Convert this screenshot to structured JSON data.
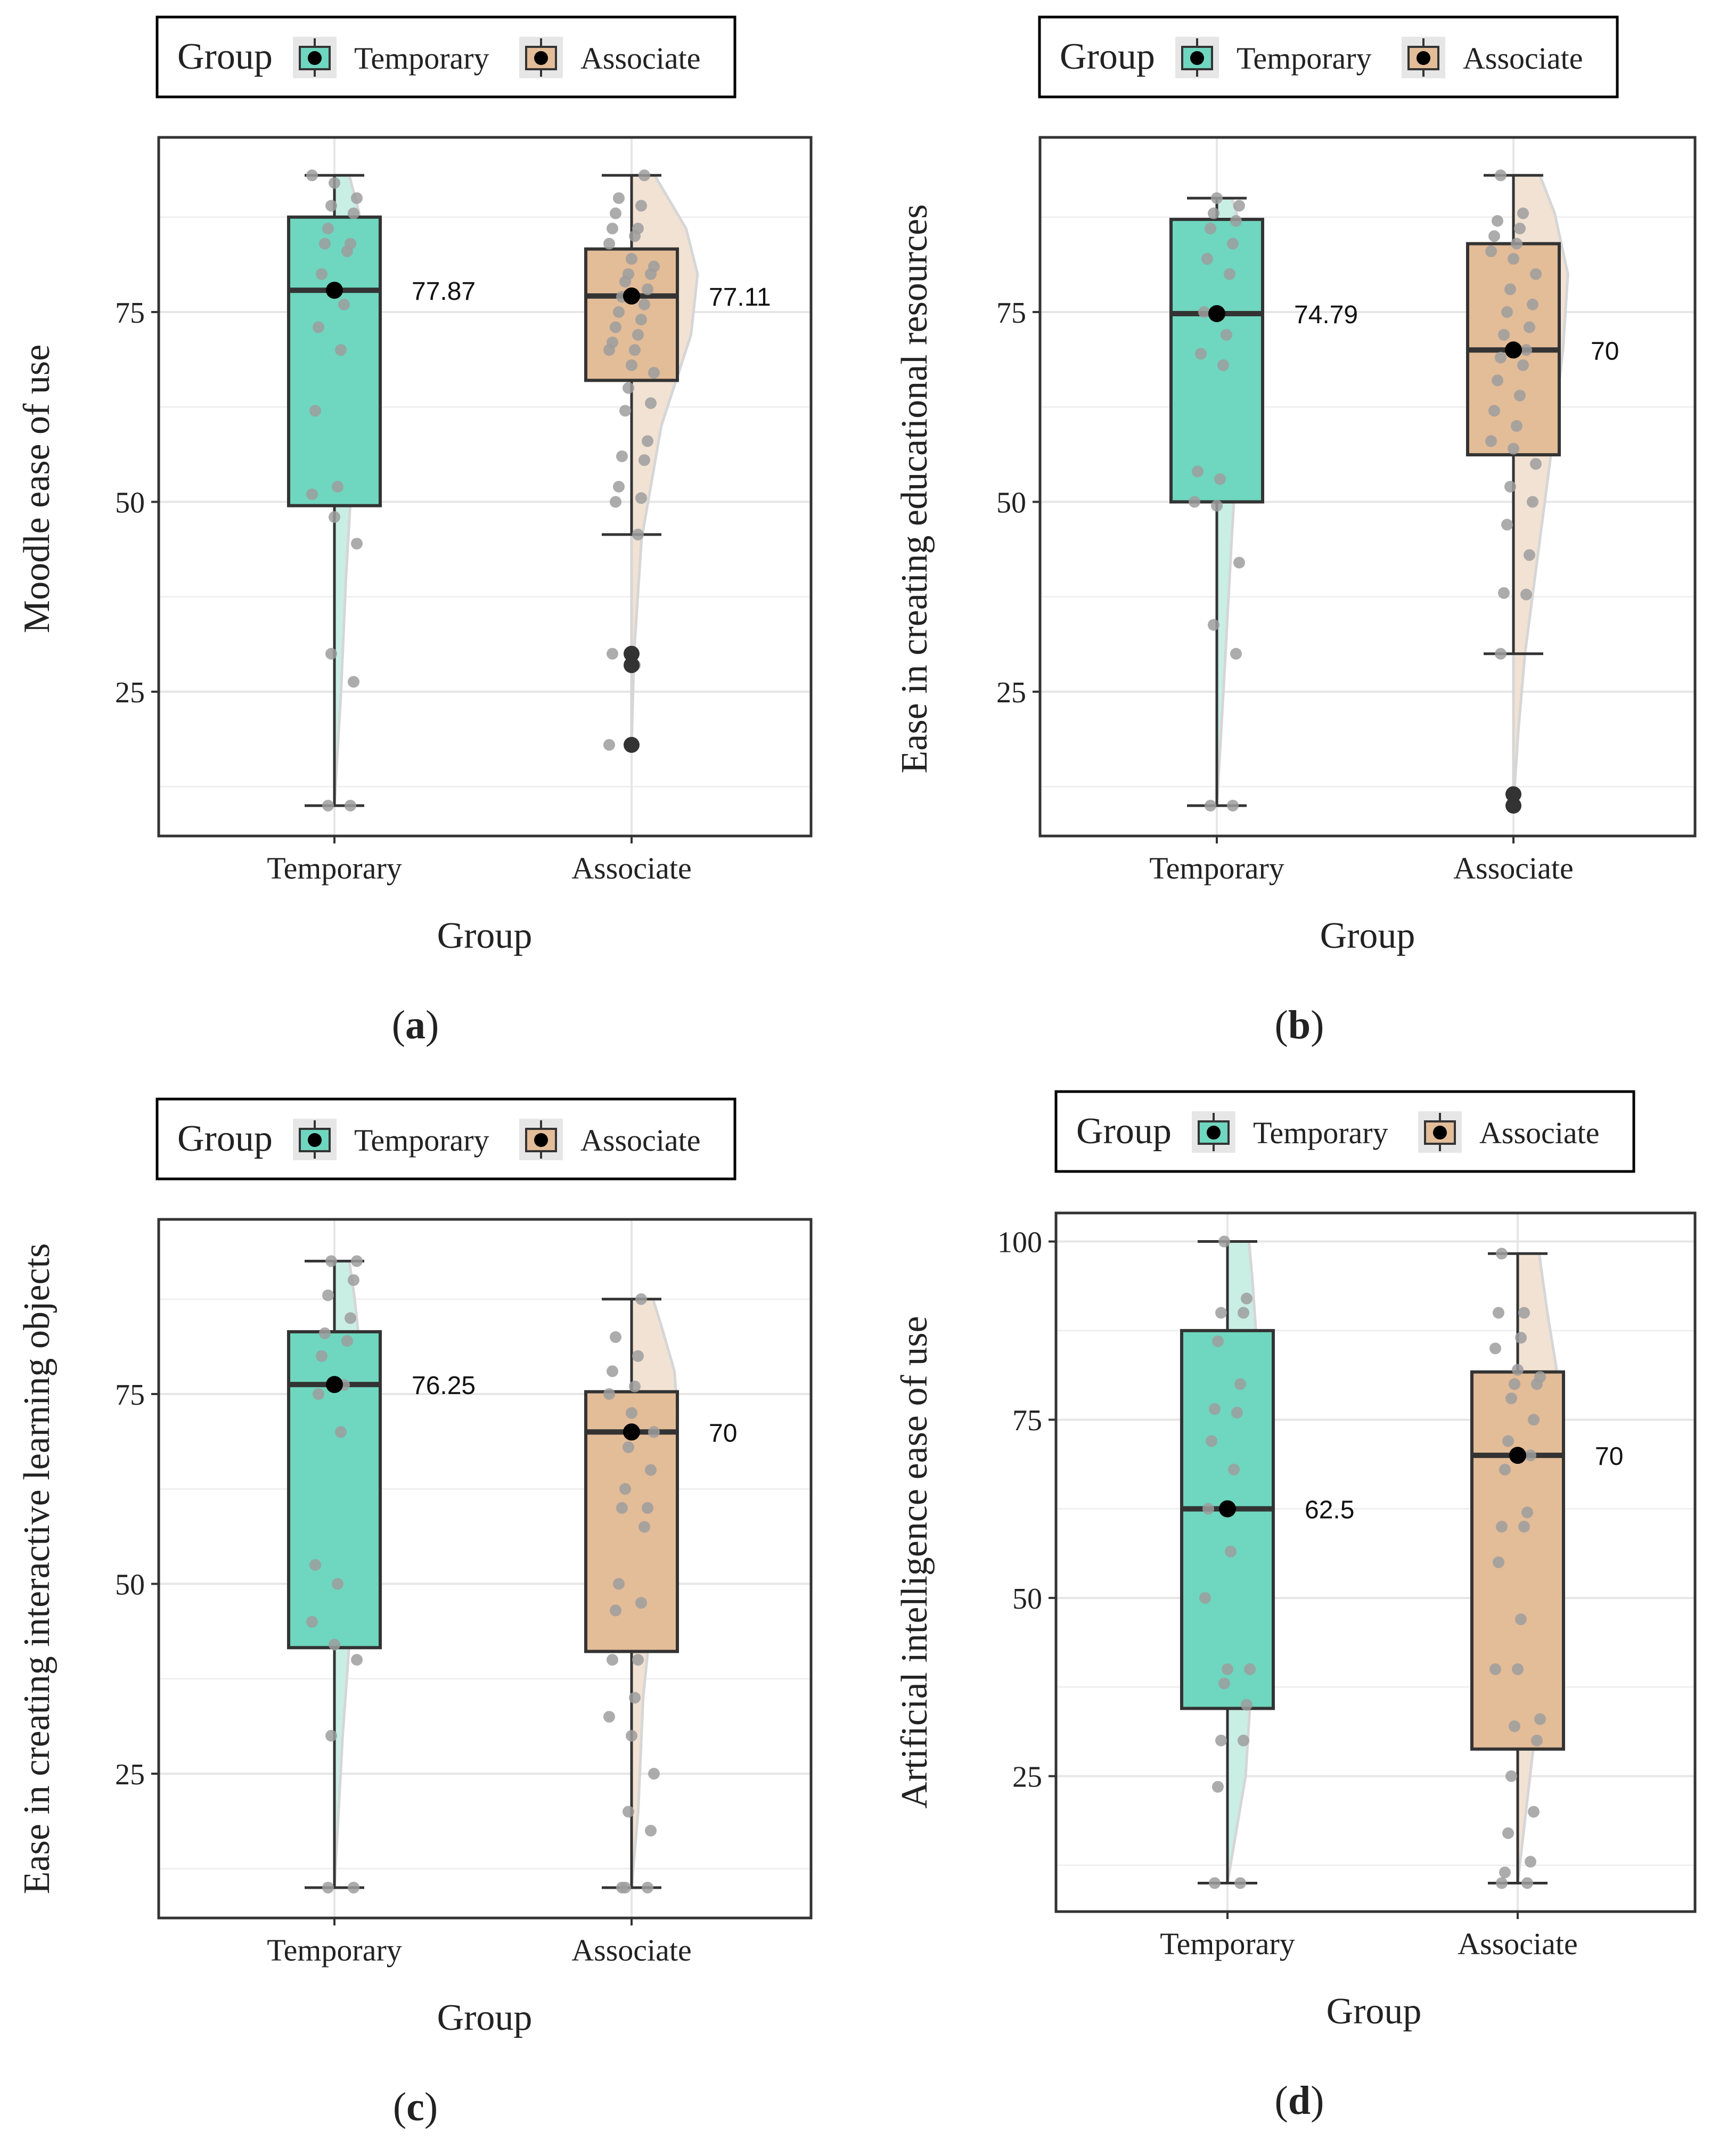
{
  "colors": {
    "temporary_fill": "#6fd6bf",
    "temporary_half": "#c9eee4",
    "associate_fill": "#e3bc98",
    "associate_half": "#f1e2d3",
    "jitter_point": "#9e9e9e",
    "outlier_point": "#333333",
    "median_point": "#000000",
    "box_stroke": "#333333",
    "grid": "#e6e6e6"
  },
  "chart_data": [
    {
      "type": "box",
      "panel_label": "a",
      "legend": {
        "title": "Group",
        "entries": [
          "Temporary",
          "Associate"
        ]
      },
      "xlabel": "Group",
      "ylabel": "Moodle ease of use",
      "categories": [
        "Temporary",
        "Associate"
      ],
      "yticks": [
        "25",
        "50",
        "75"
      ],
      "ylim": [
        6,
        98
      ],
      "series": [
        {
          "group": "Temporary",
          "q1": 49.5,
          "median": 77.87,
          "q3": 87.5,
          "whisker_low": 10,
          "whisker_high": 93,
          "label": "77.87",
          "points": [
            93,
            92,
            90,
            89,
            88,
            86,
            84,
            84,
            83,
            80,
            76,
            73,
            70,
            62,
            52,
            51,
            48,
            44.5,
            30,
            26.3,
            10,
            10
          ],
          "outliers": [],
          "density": [
            [
              10,
              0.0
            ],
            [
              25,
              0.08
            ],
            [
              40,
              0.14
            ],
            [
              55,
              0.22
            ],
            [
              70,
              0.3
            ],
            [
              80,
              0.34
            ],
            [
              88,
              0.3
            ],
            [
              93,
              0.18
            ]
          ]
        },
        {
          "group": "Associate",
          "q1": 66,
          "median": 77.11,
          "q3": 83.3,
          "whisker_low": 45.7,
          "whisker_high": 93,
          "label": "77.11",
          "points": [
            93,
            90,
            89,
            88,
            86,
            86,
            85,
            84,
            82,
            81,
            80,
            80,
            79,
            78,
            77,
            76,
            75,
            74,
            73,
            72,
            71,
            70,
            70,
            68,
            67,
            65,
            63,
            62,
            58,
            56,
            55.5,
            52,
            50.5,
            50,
            45.7,
            30,
            28.5,
            18,
            18
          ],
          "outliers": [
            30,
            28.5,
            18
          ],
          "density": [
            [
              18,
              0.0
            ],
            [
              30,
              0.03
            ],
            [
              45,
              0.12
            ],
            [
              60,
              0.36
            ],
            [
              72,
              0.72
            ],
            [
              80,
              0.8
            ],
            [
              86,
              0.66
            ],
            [
              93,
              0.28
            ]
          ]
        }
      ]
    },
    {
      "type": "box",
      "panel_label": "b",
      "legend": {
        "title": "Group",
        "entries": [
          "Temporary",
          "Associate"
        ]
      },
      "xlabel": "Group",
      "ylabel": "Ease in creating educational resources",
      "categories": [
        "Temporary",
        "Associate"
      ],
      "yticks": [
        "25",
        "50",
        "75"
      ],
      "ylim": [
        6,
        98
      ],
      "series": [
        {
          "group": "Temporary",
          "q1": 50,
          "median": 74.79,
          "q3": 87.2,
          "whisker_low": 10,
          "whisker_high": 90,
          "label": "74.79",
          "points": [
            90,
            89,
            88,
            87,
            86,
            84,
            82,
            80,
            75,
            72,
            69.5,
            68,
            54,
            53,
            50,
            49.5,
            42,
            33.8,
            30,
            10,
            10
          ],
          "outliers": [],
          "density": [
            [
              10,
              0.0
            ],
            [
              25,
              0.08
            ],
            [
              45,
              0.18
            ],
            [
              60,
              0.26
            ],
            [
              72,
              0.32
            ],
            [
              82,
              0.34
            ],
            [
              88,
              0.24
            ],
            [
              90,
              0.18
            ]
          ]
        },
        {
          "group": "Associate",
          "q1": 56.2,
          "median": 70,
          "q3": 84,
          "whisker_low": 30,
          "whisker_high": 93,
          "label": "70",
          "points": [
            93,
            88,
            87,
            86,
            85,
            84,
            83,
            82,
            80,
            78,
            76,
            75,
            73,
            72,
            70,
            69,
            68,
            66,
            64,
            62,
            60,
            58,
            57,
            55,
            52,
            50,
            47,
            43,
            38,
            37.8,
            30
          ],
          "outliers": [
            11.5,
            10
          ],
          "density": [
            [
              10,
              0.0
            ],
            [
              20,
              0.06
            ],
            [
              30,
              0.14
            ],
            [
              40,
              0.26
            ],
            [
              55,
              0.44
            ],
            [
              70,
              0.6
            ],
            [
              80,
              0.66
            ],
            [
              88,
              0.5
            ],
            [
              93,
              0.32
            ]
          ]
        }
      ]
    },
    {
      "type": "box",
      "panel_label": "c",
      "legend": {
        "title": "Group",
        "entries": [
          "Temporary",
          "Associate"
        ]
      },
      "xlabel": "Group",
      "ylabel": "Ease in creating interactive learning objects",
      "categories": [
        "Temporary",
        "Associate"
      ],
      "yticks": [
        "25",
        "50",
        "75"
      ],
      "ylim": [
        6,
        98
      ],
      "series": [
        {
          "group": "Temporary",
          "q1": 41.6,
          "median": 76.25,
          "q3": 83.2,
          "whisker_low": 10,
          "whisker_high": 92.5,
          "label": "76.25",
          "points": [
            92.5,
            92.5,
            90,
            88,
            85,
            83,
            82,
            80,
            76.2,
            75,
            70,
            52.5,
            50,
            45,
            42,
            40,
            30,
            10,
            10
          ],
          "outliers": [],
          "density": [
            [
              10,
              0.0
            ],
            [
              30,
              0.1
            ],
            [
              45,
              0.2
            ],
            [
              60,
              0.26
            ],
            [
              72,
              0.3
            ],
            [
              82,
              0.3
            ],
            [
              88,
              0.24
            ],
            [
              92.5,
              0.18
            ]
          ]
        },
        {
          "group": "Associate",
          "q1": 41.1,
          "median": 70,
          "q3": 75.3,
          "whisker_low": 10,
          "whisker_high": 87.5,
          "label": "70",
          "points": [
            87.5,
            82.5,
            80,
            78,
            76,
            75,
            72.5,
            70,
            68,
            65,
            62.5,
            60,
            60,
            57.5,
            50,
            47.5,
            46.5,
            40,
            40,
            35,
            32.5,
            30,
            25,
            20,
            17.5,
            10,
            10,
            10
          ],
          "outliers": [],
          "density": [
            [
              10,
              0.0
            ],
            [
              20,
              0.08
            ],
            [
              35,
              0.14
            ],
            [
              50,
              0.28
            ],
            [
              62,
              0.44
            ],
            [
              72,
              0.56
            ],
            [
              78,
              0.52
            ],
            [
              84,
              0.36
            ],
            [
              87.5,
              0.26
            ]
          ]
        }
      ]
    },
    {
      "type": "box",
      "panel_label": "d",
      "legend": {
        "title": "Group",
        "entries": [
          "Temporary",
          "Associate"
        ]
      },
      "xlabel": "Group",
      "ylabel": "Artificial intelligence ease of use",
      "categories": [
        "Temporary",
        "Associate"
      ],
      "yticks": [
        "25",
        "50",
        "75",
        "100"
      ],
      "ylim": [
        6,
        104
      ],
      "series": [
        {
          "group": "Temporary",
          "q1": 34.5,
          "median": 62.5,
          "q3": 87.5,
          "whisker_low": 10,
          "whisker_high": 100,
          "label": "62.5",
          "points": [
            100,
            92,
            90,
            90,
            86,
            80,
            76.5,
            76,
            72,
            68,
            62.5,
            56.5,
            50,
            40,
            40,
            38,
            35,
            30,
            30,
            23.5,
            10,
            10
          ],
          "outliers": [],
          "density": [
            [
              10,
              0.0
            ],
            [
              25,
              0.22
            ],
            [
              40,
              0.3
            ],
            [
              55,
              0.34
            ],
            [
              70,
              0.34
            ],
            [
              85,
              0.36
            ],
            [
              95,
              0.3
            ],
            [
              100,
              0.26
            ]
          ]
        },
        {
          "group": "Associate",
          "q1": 28.8,
          "median": 70,
          "q3": 81.7,
          "whisker_low": 10,
          "whisker_high": 98.3,
          "label": "70",
          "points": [
            98.3,
            90,
            90,
            86.5,
            85,
            82,
            81,
            80,
            80,
            78,
            75,
            72,
            70,
            68,
            62,
            60,
            60,
            55,
            47,
            40,
            40,
            33,
            32,
            30,
            25,
            20,
            17,
            13,
            11.5,
            10,
            10
          ],
          "outliers": [],
          "density": [
            [
              10,
              0.0
            ],
            [
              20,
              0.1
            ],
            [
              30,
              0.2
            ],
            [
              40,
              0.24
            ],
            [
              50,
              0.26
            ],
            [
              60,
              0.34
            ],
            [
              70,
              0.46
            ],
            [
              80,
              0.5
            ],
            [
              90,
              0.36
            ],
            [
              98.3,
              0.26
            ]
          ]
        }
      ]
    }
  ]
}
